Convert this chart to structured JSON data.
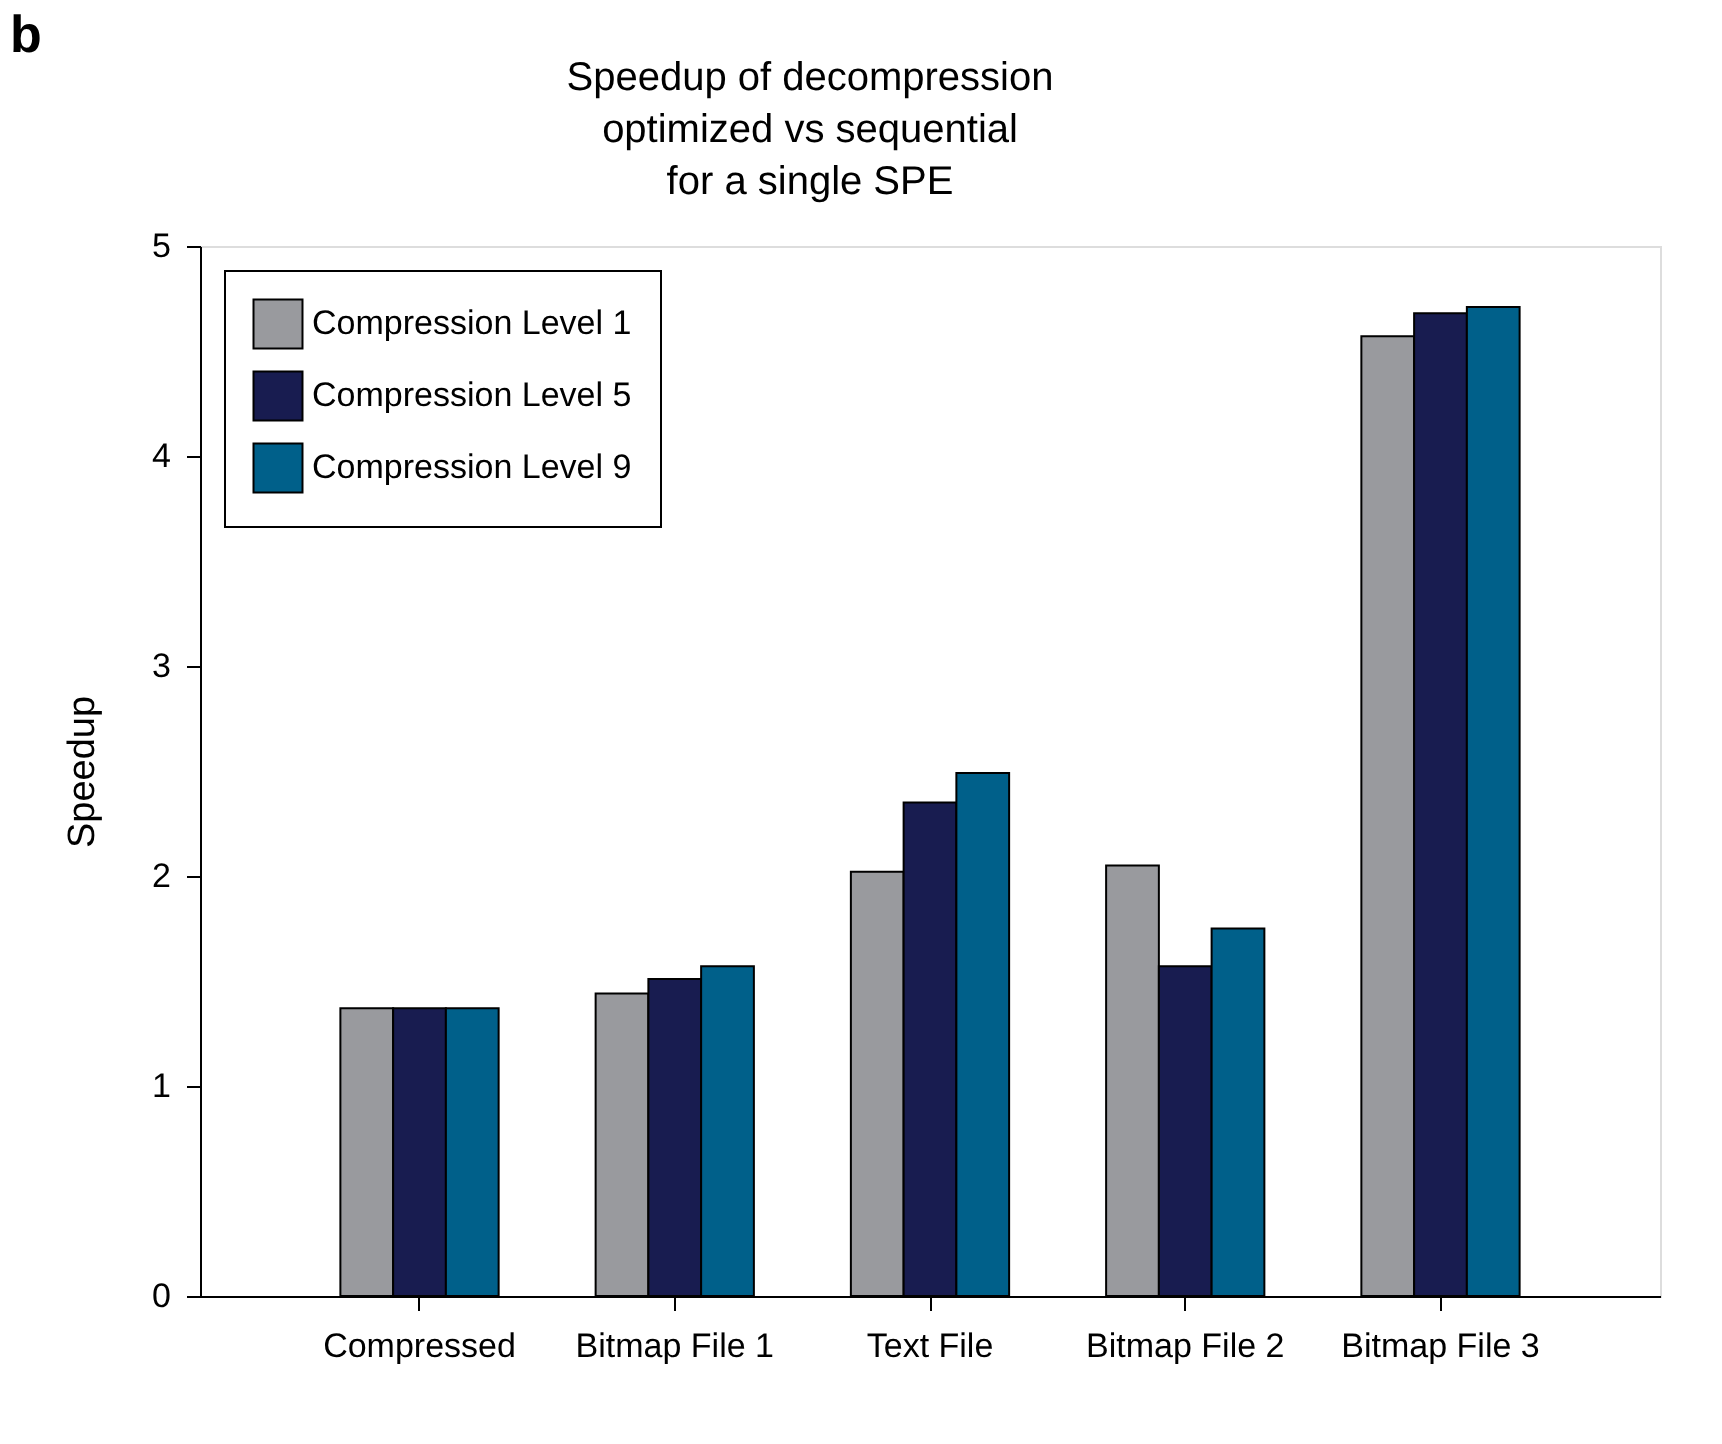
{
  "chart_data": {
    "type": "bar",
    "title": [
      "Speedup of decompression",
      "optimized vs sequential",
      "for a single SPE"
    ],
    "ylabel": "Speedup",
    "annotations": [
      "b"
    ],
    "categories": [
      "Compressed",
      "Bitmap File 1",
      "Text File",
      "Bitmap File 2",
      "Bitmap File 3"
    ],
    "series": [
      {
        "name": "Compression Level 1",
        "color": "#999a9e",
        "values": [
          1.37,
          1.44,
          2.02,
          2.05,
          4.57
        ]
      },
      {
        "name": "Compression Level 5",
        "color": "#181c50",
        "values": [
          1.37,
          1.51,
          2.35,
          1.57,
          4.68
        ]
      },
      {
        "name": "Compression Level 9",
        "color": "#00608a",
        "values": [
          1.37,
          1.57,
          2.49,
          1.75,
          4.71
        ]
      }
    ],
    "ylim": [
      0,
      5
    ],
    "yticks": [
      0,
      1,
      2,
      3,
      4,
      5
    ],
    "grid": false,
    "legend": "top left"
  }
}
